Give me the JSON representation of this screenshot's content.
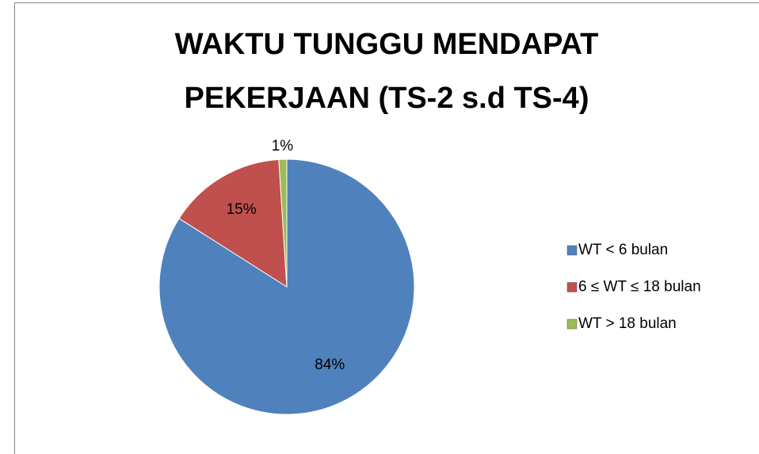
{
  "chart_data": {
    "type": "pie",
    "title": [
      "WAKTU TUNGGU MENDAPAT",
      "PEKERJAAN (TS-2 s.d TS-4)"
    ],
    "categories": [
      "WT < 6 bulan",
      "6 ≤ WT ≤ 18 bulan",
      "WT > 18 bulan"
    ],
    "values": [
      84,
      15,
      1
    ],
    "value_labels": [
      "84%",
      "15%",
      "1%"
    ],
    "colors": [
      "#4f81bd",
      "#c0504d",
      "#9bbb59"
    ],
    "legend": "right"
  }
}
